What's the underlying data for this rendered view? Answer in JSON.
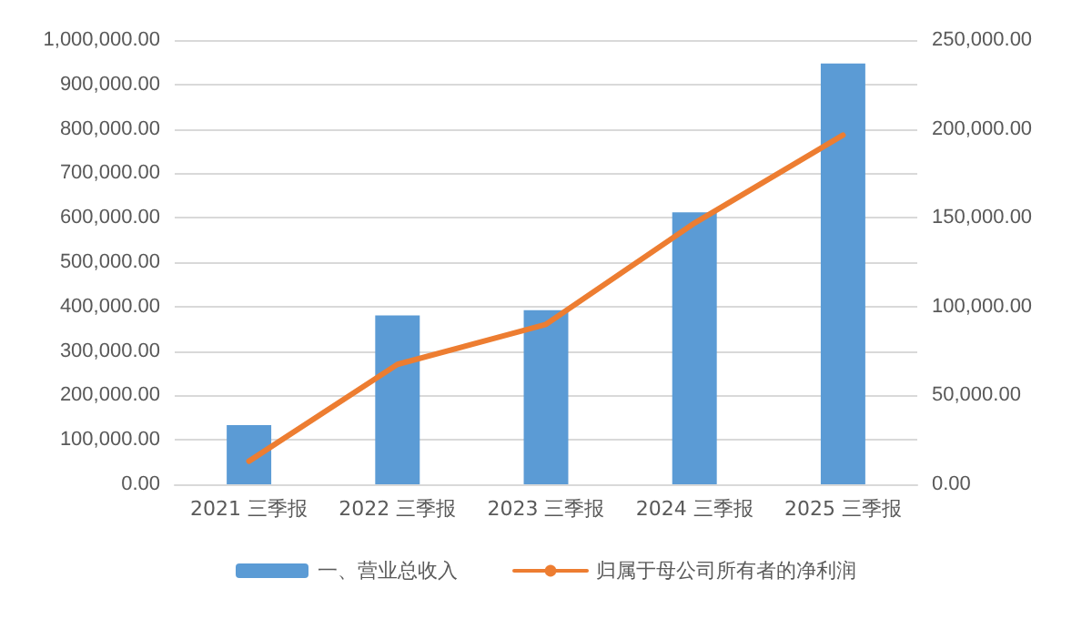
{
  "chart_data": {
    "type": "bar",
    "categories": [
      "2021 三季报",
      "2022 三季报",
      "2023 三季报",
      "2024 三季报",
      "2025 三季报"
    ],
    "series": [
      {
        "name": "一、营业总收入",
        "color": "#5b9bd5",
        "values": [
          133000,
          380000,
          392000,
          612000,
          947000
        ]
      },
      {
        "name": "归属于母公司所有者的净利润",
        "type": "line",
        "axis": "y2",
        "color": "#ed7d31",
        "values": [
          13000,
          67500,
          90000,
          147000,
          196500
        ]
      }
    ],
    "ylim": [
      0,
      1000000
    ],
    "yticks": [
      {
        "value": 0,
        "label": "0.00"
      },
      {
        "value": 100000,
        "label": "100,000.00"
      },
      {
        "value": 200000,
        "label": "200,000.00"
      },
      {
        "value": 300000,
        "label": "300,000.00"
      },
      {
        "value": 400000,
        "label": "400,000.00"
      },
      {
        "value": 500000,
        "label": "500,000.00"
      },
      {
        "value": 600000,
        "label": "600,000.00"
      },
      {
        "value": 700000,
        "label": "700,000.00"
      },
      {
        "value": 800000,
        "label": "800,000.00"
      },
      {
        "value": 900000,
        "label": "900,000.00"
      },
      {
        "value": 1000000,
        "label": "1,000,000.00"
      }
    ],
    "y2lim": [
      0,
      250000
    ],
    "y2ticks": [
      {
        "value": 0,
        "label": "0.00"
      },
      {
        "value": 50000,
        "label": "50,000.00"
      },
      {
        "value": 100000,
        "label": "100,000.00"
      },
      {
        "value": 150000,
        "label": "150,000.00"
      },
      {
        "value": 200000,
        "label": "200,000.00"
      },
      {
        "value": 250000,
        "label": "250,000.00"
      }
    ],
    "grid": "y",
    "legend": "bottom",
    "marker": "none",
    "line_style": "solid"
  }
}
